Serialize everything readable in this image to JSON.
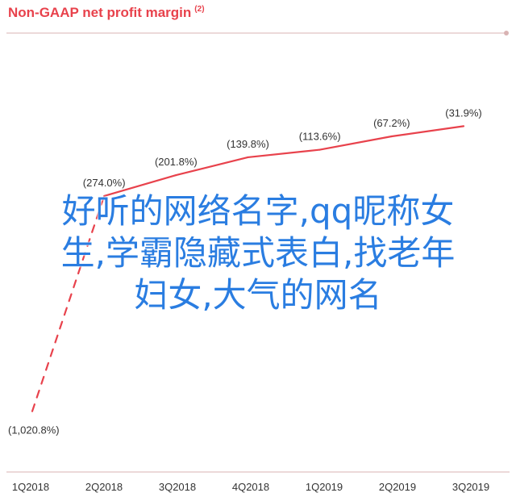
{
  "chart_data": {
    "type": "line",
    "title": "Non-GAAP net profit margin",
    "title_note": "(2)",
    "categories": [
      "1Q2018",
      "2Q2018",
      "3Q2018",
      "4Q2018",
      "1Q2019",
      "2Q2019",
      "3Q2019"
    ],
    "series": [
      {
        "values": [
          -1020.8,
          -274.0,
          -201.8,
          -139.8,
          -113.6,
          -67.2,
          -31.9
        ],
        "labels": [
          "(1,020.8%)",
          "(274.0%)",
          "(201.8%)",
          "(139.8%)",
          "(113.6%)",
          "(67.2%)",
          "(31.9%)"
        ],
        "color": "#e8424c"
      }
    ],
    "dashed_segment": {
      "from": "1Q2018",
      "to": "2Q2018"
    },
    "ylim": [
      -1100,
      0
    ],
    "grid": false,
    "legend": "none"
  },
  "overlay_text": "好听的网络名字,qq昵称女\n生,学霸隐藏式表白,找老年\n妇女,大气的网名",
  "colors": {
    "accent": "#e8424c",
    "axis": "#d9b3b3",
    "tick_text": "#333333",
    "overlay": "#2a7de1"
  }
}
